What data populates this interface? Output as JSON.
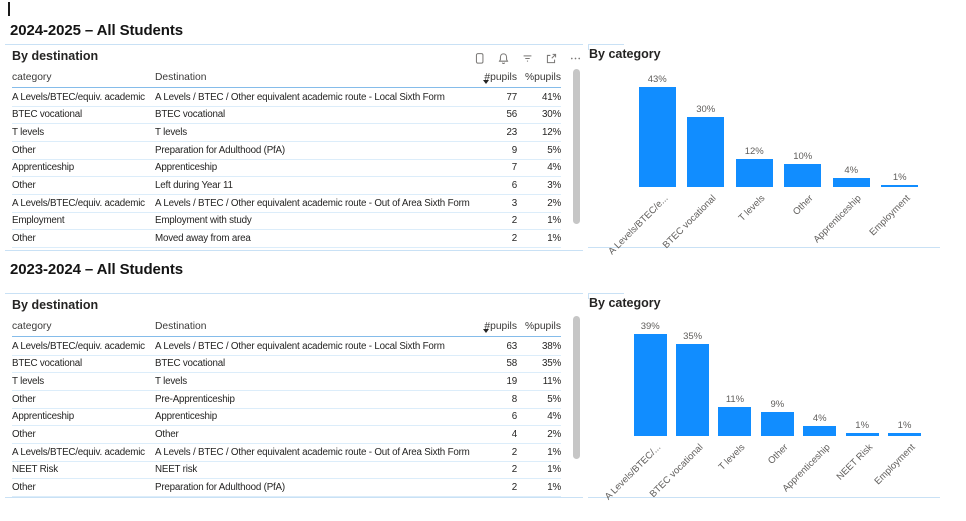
{
  "colors": {
    "bar_blue": "#118DFF",
    "text_dark": "#252423",
    "text_gray": "#605E5C",
    "header_underline": "#85BCEA",
    "row_separator": "#DCEDFA",
    "container_border": "#C9E1F5"
  },
  "sections": [
    {
      "title": "2024-2025 – All Students",
      "table": {
        "visual_title": "By destination",
        "columns": [
          "category",
          "Destination",
          "#pupils",
          "%pupils"
        ],
        "sort_column": "#pupils",
        "sort_direction": "descending",
        "toolbar_icons": [
          "copy-visual",
          "alert",
          "filter",
          "focus-mode",
          "more-options"
        ],
        "rows": [
          [
            "A Levels/BTEC/equiv. academic",
            "A Levels / BTEC / Other equivalent academic route - Local Sixth Form",
            "77",
            "41%"
          ],
          [
            "BTEC vocational",
            "BTEC vocational",
            "56",
            "30%"
          ],
          [
            "T levels",
            "T levels",
            "23",
            "12%"
          ],
          [
            "Other",
            "Preparation for Adulthood (PfA)",
            "9",
            "5%"
          ],
          [
            "Apprenticeship",
            "Apprenticeship",
            "7",
            "4%"
          ],
          [
            "Other",
            "Left during Year 11",
            "6",
            "3%"
          ],
          [
            "A Levels/BTEC/equiv. academic",
            "A Levels / BTEC / Other equivalent academic route - Out of Area Sixth Form",
            "3",
            "2%"
          ],
          [
            "Employment",
            "Employment with study",
            "2",
            "1%"
          ],
          [
            "Other",
            "Moved away from area",
            "2",
            "1%"
          ]
        ]
      }
    },
    {
      "title": "2023-2024 – All Students",
      "table": {
        "visual_title": "By destination",
        "columns": [
          "category",
          "Destination",
          "#pupils",
          "%pupils"
        ],
        "sort_column": "#pupils",
        "sort_direction": "descending",
        "rows": [
          [
            "A Levels/BTEC/equiv. academic",
            "A Levels / BTEC / Other equivalent academic route - Local Sixth Form",
            "63",
            "38%"
          ],
          [
            "BTEC vocational",
            "BTEC vocational",
            "58",
            "35%"
          ],
          [
            "T levels",
            "T levels",
            "19",
            "11%"
          ],
          [
            "Other",
            "Pre-Apprenticeship",
            "8",
            "5%"
          ],
          [
            "Apprenticeship",
            "Apprenticeship",
            "6",
            "4%"
          ],
          [
            "Other",
            "Other",
            "4",
            "2%"
          ],
          [
            "A Levels/BTEC/equiv. academic",
            "A Levels / BTEC / Other equivalent academic route - Out of Area Sixth Form",
            "2",
            "1%"
          ],
          [
            "NEET Risk",
            "NEET risk",
            "2",
            "1%"
          ],
          [
            "Other",
            "Preparation for Adulthood (PfA)",
            "2",
            "1%"
          ]
        ]
      }
    }
  ],
  "chart_data": [
    {
      "type": "bar",
      "title": "By category",
      "categories": [
        "A Levels/BTEC/e...",
        "BTEC vocational",
        "T levels",
        "Other",
        "Apprenticeship",
        "Employment"
      ],
      "values": [
        43,
        30,
        12,
        10,
        4,
        1
      ],
      "data_labels": [
        "43%",
        "30%",
        "12%",
        "10%",
        "4%",
        "1%"
      ],
      "xlabel": "",
      "ylabel": "",
      "ylim": [
        0,
        43
      ],
      "grid": false,
      "legend": false,
      "x_label_rotation": -45,
      "bar_color": "#118DFF"
    },
    {
      "type": "bar",
      "title": "By category",
      "categories": [
        "A Levels/BTEC/...",
        "BTEC vocational",
        "T levels",
        "Other",
        "Apprenticeship",
        "NEET Risk",
        "Employment"
      ],
      "values": [
        39,
        35,
        11,
        9,
        4,
        1,
        1
      ],
      "data_labels": [
        "39%",
        "35%",
        "11%",
        "9%",
        "4%",
        "1%",
        "1%"
      ],
      "xlabel": "",
      "ylabel": "",
      "ylim": [
        0,
        39
      ],
      "grid": false,
      "legend": false,
      "x_label_rotation": -45,
      "bar_color": "#118DFF"
    }
  ]
}
